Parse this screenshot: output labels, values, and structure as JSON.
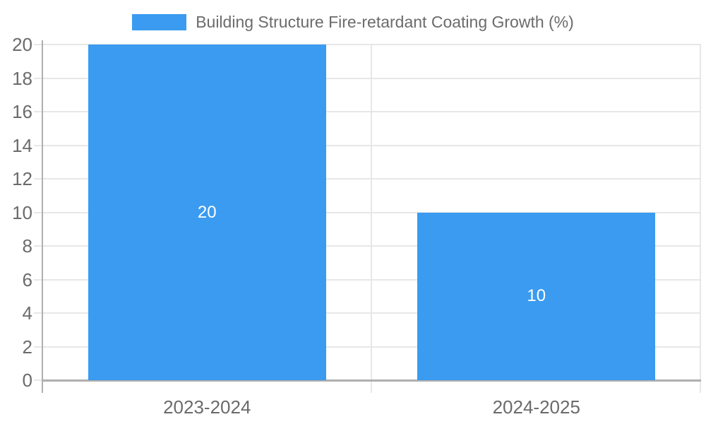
{
  "chart_data": {
    "type": "bar",
    "title": "Building Structure Fire-retardant Coating Growth (%)",
    "categories": [
      "2023-2024",
      "2024-2025"
    ],
    "values": [
      20,
      10
    ],
    "bar_labels": [
      "20",
      "10"
    ],
    "xlabel": "",
    "ylabel": "",
    "ylim": [
      0,
      20
    ],
    "ytick_step": 2,
    "ytick_labels": [
      "0",
      "2",
      "4",
      "6",
      "8",
      "10",
      "12",
      "14",
      "16",
      "18",
      "20"
    ],
    "legend_position": "top",
    "grid": true,
    "colors": {
      "bar": "#3A9BF0",
      "grid": "#E7E7E7",
      "axis": "#AFAFAF",
      "text": "#6B6B6B",
      "bar_label": "#FFFFFF",
      "background": "#FFFFFF"
    }
  }
}
